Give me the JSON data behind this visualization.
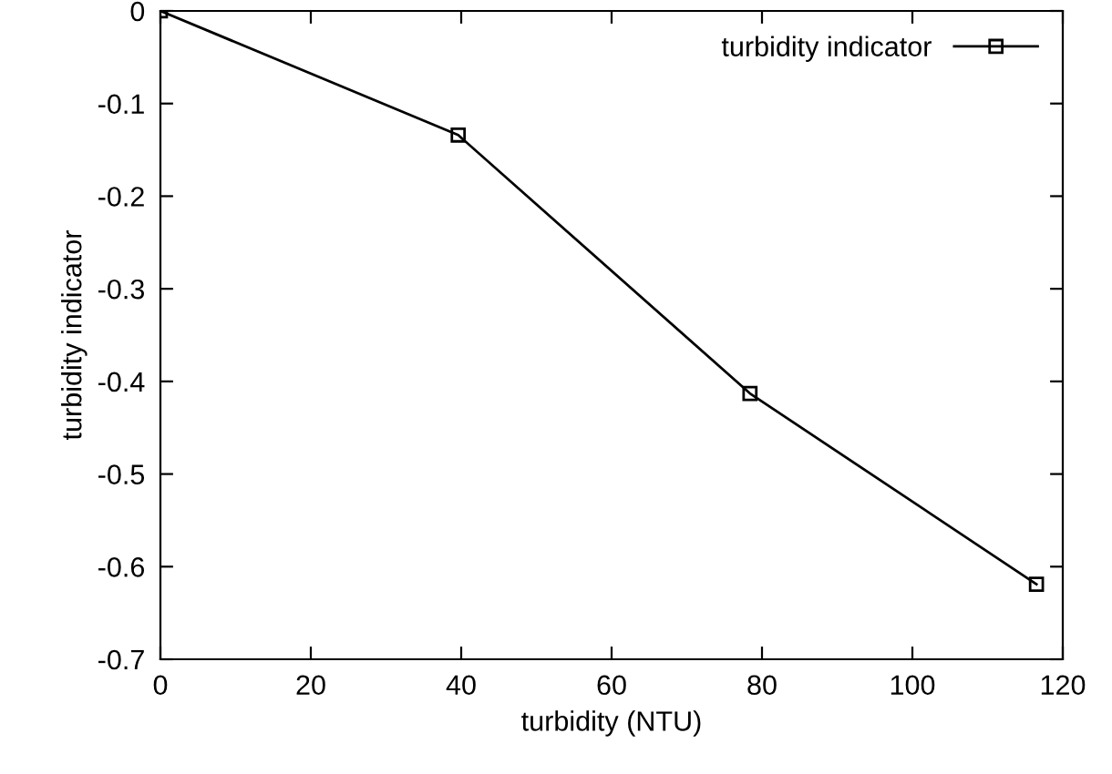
{
  "chart_data": {
    "type": "line",
    "xlabel": "turbidity (NTU)",
    "ylabel": "turbidity indicator",
    "series": [
      {
        "name": "turbidity indicator",
        "color": "#000000",
        "x": [
          0,
          39.6,
          78.4,
          116.5
        ],
        "values": [
          0,
          -0.134,
          -0.413,
          -0.619
        ]
      }
    ],
    "xlim": [
      0,
      120
    ],
    "xticks": [
      0,
      20,
      40,
      60,
      80,
      100,
      120
    ],
    "ylim": [
      -0.7,
      0
    ],
    "yticks": [
      -0.7,
      -0.6,
      -0.5,
      -0.4,
      -0.3,
      -0.2,
      -0.1,
      0
    ],
    "marker": "square",
    "line_style": "solid",
    "legend": "top right",
    "grid": false
  }
}
